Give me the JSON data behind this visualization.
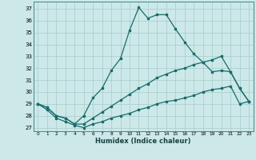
{
  "xlabel": "Humidex (Indice chaleur)",
  "bg_color": "#cce8e8",
  "line_color": "#1a6b6b",
  "grid_color": "#a8cccc",
  "xlim": [
    -0.5,
    23.5
  ],
  "ylim": [
    26.7,
    37.6
  ],
  "yticks": [
    27,
    28,
    29,
    30,
    31,
    32,
    33,
    34,
    35,
    36,
    37
  ],
  "xticks": [
    0,
    1,
    2,
    3,
    4,
    5,
    6,
    7,
    8,
    9,
    10,
    11,
    12,
    13,
    14,
    15,
    16,
    17,
    18,
    19,
    20,
    21,
    22,
    23
  ],
  "line_peak_x": [
    0,
    1,
    2,
    3,
    4,
    5,
    6,
    7,
    8,
    9,
    10,
    11,
    12,
    13,
    14,
    15,
    16,
    17,
    18,
    19,
    20,
    21,
    22,
    23
  ],
  "line_peak_y": [
    29.0,
    28.7,
    28.0,
    27.8,
    27.3,
    28.0,
    29.5,
    30.3,
    31.8,
    32.8,
    35.2,
    37.1,
    36.2,
    36.5,
    36.5,
    35.3,
    34.2,
    33.2,
    32.5,
    31.7,
    31.8,
    31.7,
    30.3,
    29.2
  ],
  "line_mid_x": [
    0,
    1,
    2,
    3,
    4,
    5,
    6,
    7,
    8,
    9,
    10,
    11,
    12,
    13,
    14,
    15,
    16,
    17,
    18,
    19,
    20,
    21,
    22,
    23
  ],
  "line_mid_y": [
    29.0,
    28.7,
    28.0,
    27.8,
    27.3,
    27.3,
    27.8,
    28.3,
    28.8,
    29.3,
    29.8,
    30.3,
    30.7,
    31.2,
    31.5,
    31.8,
    32.0,
    32.3,
    32.5,
    32.7,
    33.0,
    31.7,
    30.3,
    29.2
  ],
  "line_bot_x": [
    0,
    1,
    2,
    3,
    4,
    5,
    6,
    7,
    8,
    9,
    10,
    11,
    12,
    13,
    14,
    15,
    16,
    17,
    18,
    19,
    20,
    21,
    22,
    23
  ],
  "line_bot_y": [
    29.0,
    28.5,
    27.8,
    27.5,
    27.2,
    27.0,
    27.3,
    27.5,
    27.8,
    28.0,
    28.2,
    28.5,
    28.7,
    29.0,
    29.2,
    29.3,
    29.5,
    29.7,
    30.0,
    30.2,
    30.3,
    30.5,
    29.0,
    29.2
  ]
}
